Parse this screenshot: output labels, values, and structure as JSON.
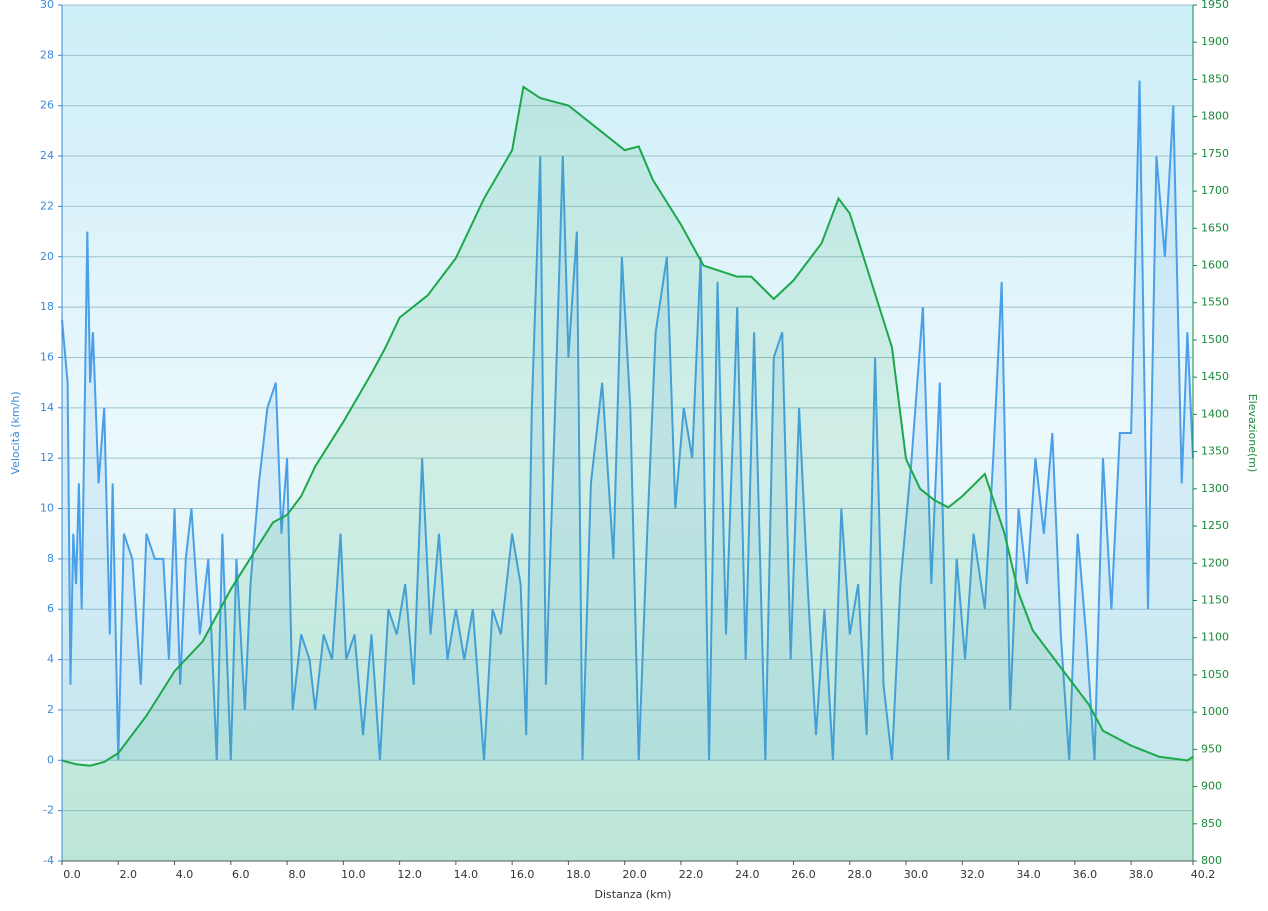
{
  "chart_data": {
    "type": "dual-area-line",
    "x_label": "Distanza (km)",
    "y_label": "Velocità (km/h)",
    "y2_label": "Elevazione(m)",
    "xlim": [
      0,
      40.2
    ],
    "ylim": [
      -4,
      30
    ],
    "y2lim": [
      800,
      1950
    ],
    "xticks": [
      {
        "value": 0,
        "label": "0.0"
      },
      {
        "value": 2,
        "label": "2.0"
      },
      {
        "value": 4,
        "label": "4.0"
      },
      {
        "value": 6,
        "label": "6.0"
      },
      {
        "value": 8,
        "label": "8.0"
      },
      {
        "value": 10,
        "label": "10.0"
      },
      {
        "value": 12,
        "label": "12.0"
      },
      {
        "value": 14,
        "label": "14.0"
      },
      {
        "value": 16,
        "label": "16.0"
      },
      {
        "value": 18,
        "label": "18.0"
      },
      {
        "value": 20,
        "label": "20.0"
      },
      {
        "value": 22,
        "label": "22.0"
      },
      {
        "value": 24,
        "label": "24.0"
      },
      {
        "value": 26,
        "label": "26.0"
      },
      {
        "value": 28,
        "label": "28.0"
      },
      {
        "value": 30,
        "label": "30.0"
      },
      {
        "value": 32,
        "label": "32.0"
      },
      {
        "value": 34,
        "label": "34.0"
      },
      {
        "value": 36,
        "label": "36.0"
      },
      {
        "value": 38,
        "label": "38.0"
      },
      {
        "value": 40.2,
        "label": "40.2"
      }
    ],
    "yticks": [
      -4,
      -2,
      0,
      2,
      4,
      6,
      8,
      10,
      12,
      14,
      16,
      18,
      20,
      22,
      24,
      26,
      28,
      30
    ],
    "y2ticks": [
      800,
      850,
      900,
      950,
      1000,
      1050,
      1100,
      1150,
      1200,
      1250,
      1300,
      1350,
      1400,
      1450,
      1500,
      1550,
      1600,
      1650,
      1700,
      1750,
      1800,
      1850,
      1900,
      1950
    ],
    "grid": true,
    "series": [
      {
        "color": "#4a9fe8",
        "axis": "y",
        "x": [
          0,
          0.2,
          0.3,
          0.4,
          0.5,
          0.6,
          0.7,
          0.9,
          1.0,
          1.1,
          1.3,
          1.5,
          1.7,
          1.8,
          2.0,
          2.2,
          2.5,
          2.8,
          3.0,
          3.3,
          3.6,
          3.8,
          4.0,
          4.2,
          4.4,
          4.6,
          4.9,
          5.2,
          5.5,
          5.7,
          6.0,
          6.2,
          6.5,
          6.7,
          7.0,
          7.3,
          7.6,
          7.8,
          8.0,
          8.2,
          8.5,
          8.8,
          9.0,
          9.3,
          9.6,
          9.9,
          10.1,
          10.4,
          10.7,
          11.0,
          11.3,
          11.6,
          11.9,
          12.2,
          12.5,
          12.8,
          13.1,
          13.4,
          13.7,
          14.0,
          14.3,
          14.6,
          15.0,
          15.3,
          15.6,
          16.0,
          16.3,
          16.5,
          16.7,
          17.0,
          17.2,
          17.5,
          17.8,
          18.0,
          18.3,
          18.5,
          18.8,
          19.2,
          19.6,
          19.9,
          20.2,
          20.5,
          20.8,
          21.1,
          21.5,
          21.8,
          22.1,
          22.4,
          22.7,
          23.0,
          23.3,
          23.6,
          24.0,
          24.3,
          24.6,
          25.0,
          25.3,
          25.6,
          25.9,
          26.2,
          26.5,
          26.8,
          27.1,
          27.4,
          27.7,
          28.0,
          28.3,
          28.6,
          28.9,
          29.2,
          29.5,
          29.8,
          30.2,
          30.6,
          30.9,
          31.2,
          31.5,
          31.8,
          32.1,
          32.4,
          32.8,
          33.1,
          33.4,
          33.7,
          34.0,
          34.3,
          34.6,
          34.9,
          35.2,
          35.5,
          35.8,
          36.1,
          36.4,
          36.7,
          37.0,
          37.3,
          37.6,
          38.0,
          38.3,
          38.6,
          38.9,
          39.2,
          39.5,
          39.8,
          40.0,
          40.2
        ],
        "values": [
          17.5,
          15,
          3,
          9,
          7,
          11,
          6,
          21,
          15,
          17,
          11,
          14,
          5,
          11,
          0,
          9,
          8,
          3,
          9,
          8,
          8,
          4,
          10,
          3,
          8,
          10,
          5,
          8,
          0,
          9,
          0,
          8,
          2,
          7,
          11,
          14,
          15,
          9,
          12,
          2,
          5,
          4,
          2,
          5,
          4,
          9,
          4,
          5,
          1,
          5,
          0,
          6,
          5,
          7,
          3,
          12,
          5,
          9,
          4,
          6,
          4,
          6,
          0,
          6,
          5,
          9,
          7,
          1,
          14,
          24,
          3,
          13,
          24,
          16,
          21,
          0,
          11,
          15,
          8,
          20,
          14,
          0,
          9,
          17,
          20,
          10,
          14,
          12,
          20,
          0,
          19,
          5,
          18,
          4,
          17,
          0,
          16,
          17,
          4,
          14,
          7,
          1,
          6,
          0,
          10,
          5,
          7,
          1,
          16,
          3,
          0,
          7,
          12,
          18,
          7,
          15,
          0,
          8,
          4,
          9,
          6,
          12,
          19,
          2,
          10,
          7,
          12,
          9,
          13,
          5,
          0,
          9,
          5,
          0,
          12,
          6,
          13,
          13,
          27,
          6,
          24,
          20,
          26,
          11,
          17,
          12
        ]
      },
      {
        "color": "#1aa84a",
        "axis": "y2",
        "x": [
          0,
          0.5,
          1,
          1.5,
          2,
          3,
          4,
          5,
          6,
          7,
          7.5,
          8,
          8.5,
          9,
          10,
          11,
          11.5,
          12,
          13,
          14,
          15,
          16,
          16.4,
          17,
          18,
          19,
          20,
          20.5,
          21,
          22,
          22.8,
          24,
          24.5,
          25.3,
          26,
          27,
          27.6,
          28,
          29,
          29.5,
          30,
          30.5,
          31,
          31.5,
          32,
          32.8,
          33.5,
          34,
          34.5,
          35.5,
          36.5,
          37,
          38,
          39,
          40,
          40.2
        ],
        "values": [
          935,
          930,
          928,
          933,
          945,
          995,
          1055,
          1095,
          1165,
          1225,
          1255,
          1265,
          1290,
          1330,
          1390,
          1455,
          1490,
          1530,
          1560,
          1610,
          1690,
          1755,
          1840,
          1825,
          1815,
          1785,
          1755,
          1760,
          1715,
          1655,
          1600,
          1585,
          1585,
          1555,
          1580,
          1630,
          1690,
          1670,
          1550,
          1490,
          1340,
          1300,
          1285,
          1275,
          1290,
          1320,
          1240,
          1160,
          1110,
          1060,
          1010,
          975,
          955,
          940,
          935,
          940
        ]
      }
    ]
  }
}
